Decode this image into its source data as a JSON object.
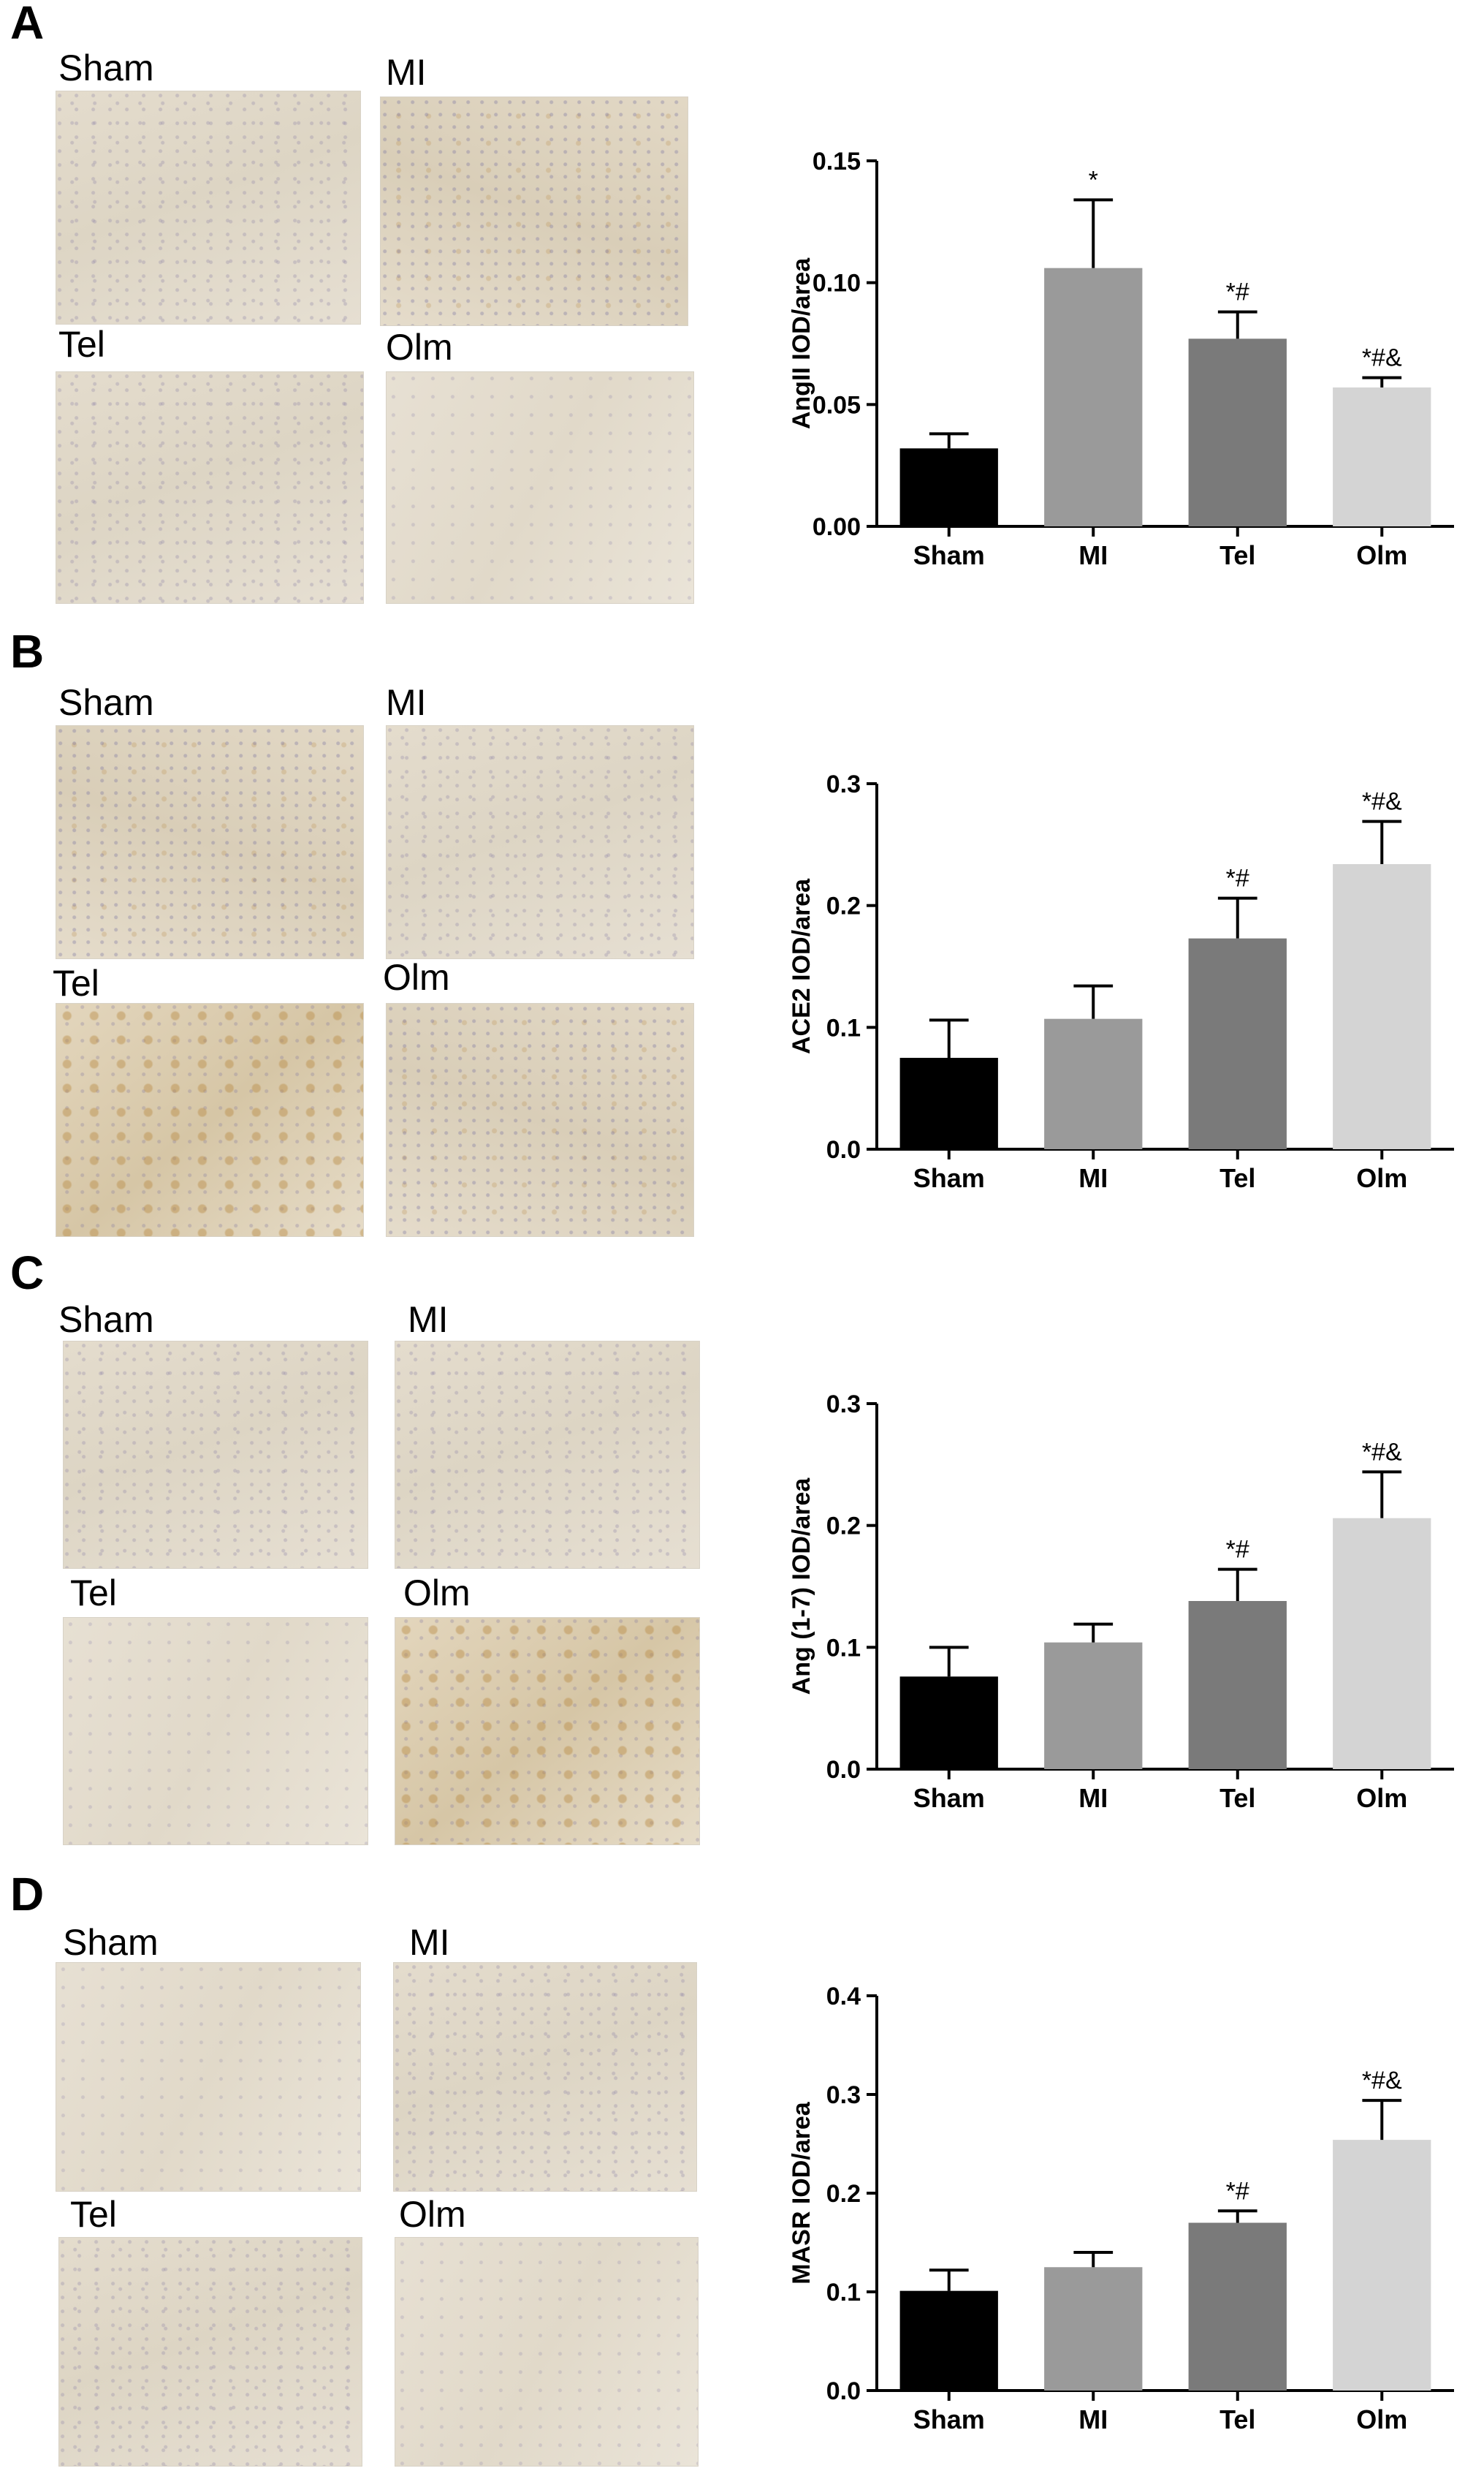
{
  "panels": [
    {
      "letter": "A",
      "micro_labels": [
        "Sham",
        "MI",
        "Tel",
        "Olm"
      ]
    },
    {
      "letter": "B",
      "micro_labels": [
        "Sham",
        "MI",
        "Tel",
        "Olm"
      ]
    },
    {
      "letter": "C",
      "micro_labels": [
        "Sham",
        "MI",
        "Tel",
        "Olm"
      ]
    },
    {
      "letter": "D",
      "micro_labels": [
        "Sham",
        "MI",
        "Tel",
        "Olm"
      ]
    }
  ],
  "bar_colors": [
    "#000000",
    "#9a9a9a",
    "#7a7a7a",
    "#d4d4d4"
  ],
  "chart_data": [
    {
      "type": "bar",
      "categories": [
        "Sham",
        "MI",
        "Tel",
        "Olm"
      ],
      "values": [
        0.032,
        0.106,
        0.077,
        0.057
      ],
      "errors": [
        0.006,
        0.028,
        0.011,
        0.004
      ],
      "annotations": [
        "",
        "*",
        "*#",
        "*#&"
      ],
      "ylabel": "AngII IOD/area",
      "xlabel": "",
      "ylim": [
        0,
        0.15
      ],
      "yticks": [
        "0.00",
        "0.05",
        "0.10",
        "0.15"
      ],
      "ytick_values": [
        0,
        0.05,
        0.1,
        0.15
      ]
    },
    {
      "type": "bar",
      "categories": [
        "Sham",
        "MI",
        "Tel",
        "Olm"
      ],
      "values": [
        0.075,
        0.107,
        0.173,
        0.234
      ],
      "errors": [
        0.031,
        0.027,
        0.033,
        0.035
      ],
      "annotations": [
        "",
        "",
        "*#",
        "*#&"
      ],
      "ylabel": "ACE2 IOD/area",
      "xlabel": "",
      "ylim": [
        0,
        0.3
      ],
      "yticks": [
        "0.0",
        "0.1",
        "0.2",
        "0.3"
      ],
      "ytick_values": [
        0,
        0.1,
        0.2,
        0.3
      ]
    },
    {
      "type": "bar",
      "categories": [
        "Sham",
        "MI",
        "Tel",
        "Olm"
      ],
      "values": [
        0.076,
        0.104,
        0.138,
        0.206
      ],
      "errors": [
        0.024,
        0.015,
        0.026,
        0.038
      ],
      "annotations": [
        "",
        "",
        "*#",
        "*#&"
      ],
      "ylabel": "Ang (1-7) IOD/area",
      "xlabel": "",
      "ylim": [
        0,
        0.3
      ],
      "yticks": [
        "0.0",
        "0.1",
        "0.2",
        "0.3"
      ],
      "ytick_values": [
        0,
        0.1,
        0.2,
        0.3
      ]
    },
    {
      "type": "bar",
      "categories": [
        "Sham",
        "MI",
        "Tel",
        "Olm"
      ],
      "values": [
        0.101,
        0.125,
        0.17,
        0.254
      ],
      "errors": [
        0.021,
        0.015,
        0.012,
        0.04
      ],
      "annotations": [
        "",
        "",
        "*#",
        "*#&"
      ],
      "ylabel": "MASR IOD/area",
      "xlabel": "",
      "ylim": [
        0,
        0.4
      ],
      "yticks": [
        "0.0",
        "0.1",
        "0.2",
        "0.3",
        "0.4"
      ],
      "ytick_values": [
        0,
        0.1,
        0.2,
        0.3,
        0.4
      ]
    }
  ]
}
